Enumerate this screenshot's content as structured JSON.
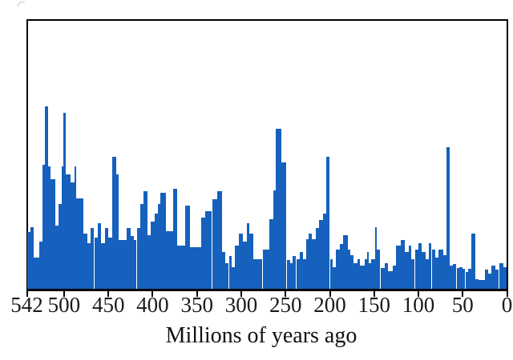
{
  "chart_data": {
    "type": "bar",
    "title": "",
    "subtitle": "",
    "xlabel": "Millions of years ago",
    "ylabel": "",
    "legend": "none",
    "grid": "off",
    "x_axis": {
      "min_ma": 542,
      "max_ma": 0,
      "direction": "older-left-to-younger-right",
      "ticks": [
        542,
        500,
        450,
        400,
        350,
        300,
        250,
        200,
        150,
        100,
        50,
        0
      ]
    },
    "y_axis": {
      "tick_labels_visible": false,
      "units": "bar height as percent of plot height (no y labels shown in image)",
      "range_pct": [
        0,
        100
      ]
    },
    "bars_format": [
      "start_ma",
      "end_ma",
      "height_pct_of_plot"
    ],
    "bars": [
      [
        542,
        538,
        21.3
      ],
      [
        538,
        534,
        23.1
      ],
      [
        534,
        528,
        11.7
      ],
      [
        528,
        524,
        17.7
      ],
      [
        524,
        522,
        46.2
      ],
      [
        522,
        518,
        68.2
      ],
      [
        518,
        515,
        45.6
      ],
      [
        515,
        510,
        40.8
      ],
      [
        510,
        506,
        23.7
      ],
      [
        506,
        503,
        31.8
      ],
      [
        503,
        501,
        45.6
      ],
      [
        501,
        498,
        65.8
      ],
      [
        498,
        493,
        42.6
      ],
      [
        493,
        488,
        39.6
      ],
      [
        488,
        486,
        45.6
      ],
      [
        486,
        478,
        33.6
      ],
      [
        478,
        474,
        20.7
      ],
      [
        474,
        470,
        17.1
      ],
      [
        470,
        466,
        22.8
      ],
      [
        466,
        462,
        19.2
      ],
      [
        462,
        458,
        24.6
      ],
      [
        458,
        454,
        17.1
      ],
      [
        454,
        450,
        22.8
      ],
      [
        450,
        446,
        19.2
      ],
      [
        446,
        441,
        49.2
      ],
      [
        441,
        438,
        42.6
      ],
      [
        438,
        429,
        18.3
      ],
      [
        429,
        425,
        22.8
      ],
      [
        425,
        421,
        19.8
      ],
      [
        421,
        418,
        18.3
      ],
      [
        418,
        414,
        22.8
      ],
      [
        414,
        410,
        31.8
      ],
      [
        410,
        406,
        36.3
      ],
      [
        406,
        402,
        20.1
      ],
      [
        402,
        398,
        25.2
      ],
      [
        398,
        394,
        28.2
      ],
      [
        394,
        391,
        31.8
      ],
      [
        391,
        385,
        35.7
      ],
      [
        385,
        377,
        21.6
      ],
      [
        377,
        372,
        37.2
      ],
      [
        372,
        363,
        16.2
      ],
      [
        363,
        358,
        31.2
      ],
      [
        358,
        345,
        15.6
      ],
      [
        345,
        341,
        26.7
      ],
      [
        341,
        333,
        29.1
      ],
      [
        333,
        327,
        33.3
      ],
      [
        327,
        322,
        36.3
      ],
      [
        322,
        318,
        13.8
      ],
      [
        318,
        314,
        9.6
      ],
      [
        314,
        311,
        12.3
      ],
      [
        311,
        307,
        8.1
      ],
      [
        307,
        303,
        16.2
      ],
      [
        303,
        298,
        20.7
      ],
      [
        298,
        294,
        17.7
      ],
      [
        294,
        291,
        24.6
      ],
      [
        291,
        286,
        20.7
      ],
      [
        286,
        276,
        11.1
      ],
      [
        276,
        268,
        14.7
      ],
      [
        268,
        264,
        26.1
      ],
      [
        264,
        261,
        36.6
      ],
      [
        261,
        255,
        59.8
      ],
      [
        255,
        249,
        47.1
      ],
      [
        248,
        245,
        10.8
      ],
      [
        245,
        242,
        9.6
      ],
      [
        242,
        238,
        12.3
      ],
      [
        238,
        234,
        11.1
      ],
      [
        234,
        230,
        13.8
      ],
      [
        230,
        227,
        11.1
      ],
      [
        227,
        224,
        18.6
      ],
      [
        224,
        220,
        20.6
      ],
      [
        220,
        216,
        18.6
      ],
      [
        216,
        212,
        22.8
      ],
      [
        212,
        208,
        25.8
      ],
      [
        208,
        204,
        28.2
      ],
      [
        204,
        200,
        49.2
      ],
      [
        200,
        197,
        11.1
      ],
      [
        197,
        193,
        8.1
      ],
      [
        193,
        189,
        14.7
      ],
      [
        189,
        185,
        16.8
      ],
      [
        185,
        180,
        20.1
      ],
      [
        180,
        177,
        14.7
      ],
      [
        177,
        173,
        12.6
      ],
      [
        173,
        169,
        9.6
      ],
      [
        169,
        166,
        11.1
      ],
      [
        166,
        161,
        8.7
      ],
      [
        161,
        158,
        11.1
      ],
      [
        158,
        156,
        13.8
      ],
      [
        156,
        153,
        9.6
      ],
      [
        153,
        149,
        11.1
      ],
      [
        149,
        147,
        23.1
      ],
      [
        147,
        143,
        14.7
      ],
      [
        143,
        138,
        7.8
      ],
      [
        138,
        134,
        9.6
      ],
      [
        134,
        129,
        6.6
      ],
      [
        129,
        125,
        8.7
      ],
      [
        125,
        120,
        16.2
      ],
      [
        120,
        115,
        18.3
      ],
      [
        115,
        111,
        13.8
      ],
      [
        111,
        108,
        16.2
      ],
      [
        108,
        104,
        11.1
      ],
      [
        104,
        100,
        14.7
      ],
      [
        100,
        96,
        17.1
      ],
      [
        96,
        92,
        13.8
      ],
      [
        92,
        88,
        11.1
      ],
      [
        88,
        85,
        17.1
      ],
      [
        85,
        81,
        14.7
      ],
      [
        81,
        77,
        11.7
      ],
      [
        77,
        72,
        14.7
      ],
      [
        72,
        68,
        12.6
      ],
      [
        68,
        65,
        52.9
      ],
      [
        65,
        61,
        8.7
      ],
      [
        61,
        57,
        9.3
      ],
      [
        57,
        54,
        7.8
      ],
      [
        54,
        50,
        8.1
      ],
      [
        50,
        47,
        7.5
      ],
      [
        47,
        44,
        6.3
      ],
      [
        44,
        40,
        7.5
      ],
      [
        40,
        36,
        20.7
      ],
      [
        36,
        32,
        3.6
      ],
      [
        32,
        25,
        3.3
      ],
      [
        25,
        21,
        7.2
      ],
      [
        21,
        18,
        5.7
      ],
      [
        18,
        13,
        8.7
      ],
      [
        13,
        9,
        7.2
      ],
      [
        9,
        4,
        9.6
      ],
      [
        4,
        0,
        8.1
      ]
    ],
    "notable_peaks_ma": [
      520,
      500,
      444,
      252,
      201,
      66
    ],
    "colors": {
      "bar": "#1561bd",
      "axis": "#000000",
      "tick_label": "#1b1b1b",
      "background": "#ffffff"
    }
  }
}
